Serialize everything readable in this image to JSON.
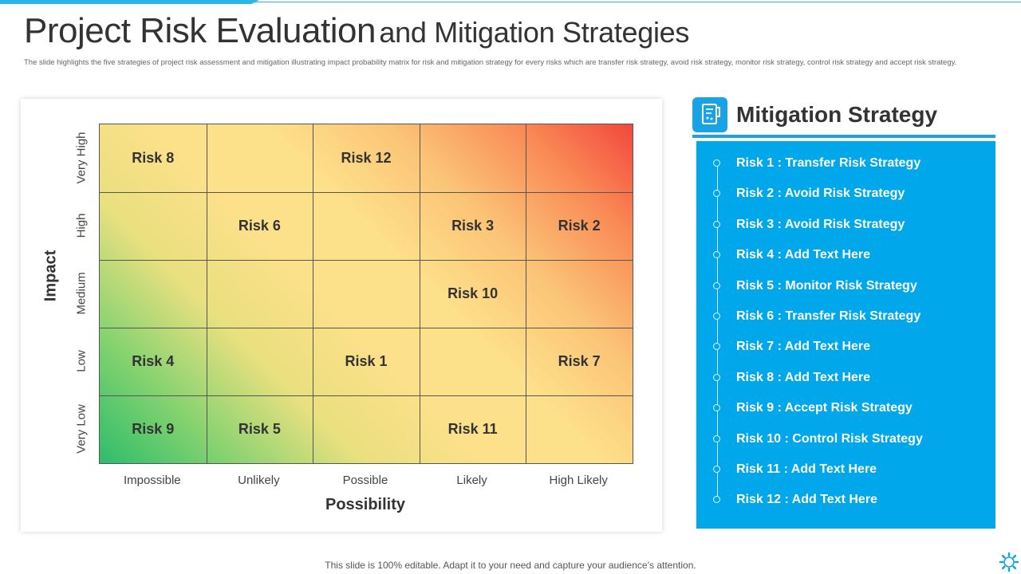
{
  "title": {
    "main": "Project Risk Evaluation",
    "rest": "and Mitigation Strategies"
  },
  "subtitle": "The slide highlights the five strategies of project risk assessment and mitigation illustrating impact probability matrix for risk and mitigation strategy for every risks which are transfer risk strategy, avoid risk strategy, monitor risk strategy, control risk strategy and accept risk strategy.",
  "colors": {
    "accent": "#1aa3e3",
    "panel": "#00a7ea",
    "low_risk": "#2dbd6b",
    "mid_risk": "#fde08a",
    "high_risk": "#f2473e"
  },
  "chart_data": {
    "type": "heatmap",
    "title": "",
    "xlabel": "Possibility",
    "ylabel": "Impact",
    "x_categories": [
      "Impossible",
      "Unlikely",
      "Possible",
      "Likely",
      "High Likely"
    ],
    "y_categories": [
      "Very High",
      "High",
      "Medium",
      "Low",
      "Very Low"
    ],
    "cells": [
      {
        "label": "Risk 8",
        "x": "Impossible",
        "y": "Very High"
      },
      {
        "label": "Risk 12",
        "x": "Possible",
        "y": "Very High"
      },
      {
        "label": "Risk 6",
        "x": "Unlikely",
        "y": "High"
      },
      {
        "label": "Risk 3",
        "x": "Likely",
        "y": "High"
      },
      {
        "label": "Risk 2",
        "x": "High Likely",
        "y": "High"
      },
      {
        "label": "Risk 10",
        "x": "Likely",
        "y": "Medium"
      },
      {
        "label": "Risk 4",
        "x": "Impossible",
        "y": "Low"
      },
      {
        "label": "Risk 1",
        "x": "Possible",
        "y": "Low"
      },
      {
        "label": "Risk 7",
        "x": "High Likely",
        "y": "Low"
      },
      {
        "label": "Risk 9",
        "x": "Impossible",
        "y": "Very Low"
      },
      {
        "label": "Risk 5",
        "x": "Unlikely",
        "y": "Very Low"
      },
      {
        "label": "Risk 11",
        "x": "Likely",
        "y": "Very Low"
      }
    ]
  },
  "mitigation": {
    "heading": "Mitigation Strategy",
    "icon": "document-icon",
    "items": [
      "Risk 1 : Transfer Risk Strategy",
      "Risk 2 : Avoid Risk Strategy",
      "Risk 3 : Avoid Risk Strategy",
      "Risk 4 : Add Text Here",
      "Risk 5 : Monitor Risk Strategy",
      "Risk 6 : Transfer Risk Strategy",
      "Risk 7 : Add Text Here",
      "Risk 8 : Add Text Here",
      "Risk 9 : Accept Risk Strategy",
      "Risk 10 : Control Risk Strategy",
      "Risk 11 : Add Text Here",
      "Risk 12 : Add Text Here"
    ]
  },
  "footer": "This slide is 100% editable. Adapt it to your need and capture your audience’s attention.",
  "corner_icon": "gear-icon"
}
